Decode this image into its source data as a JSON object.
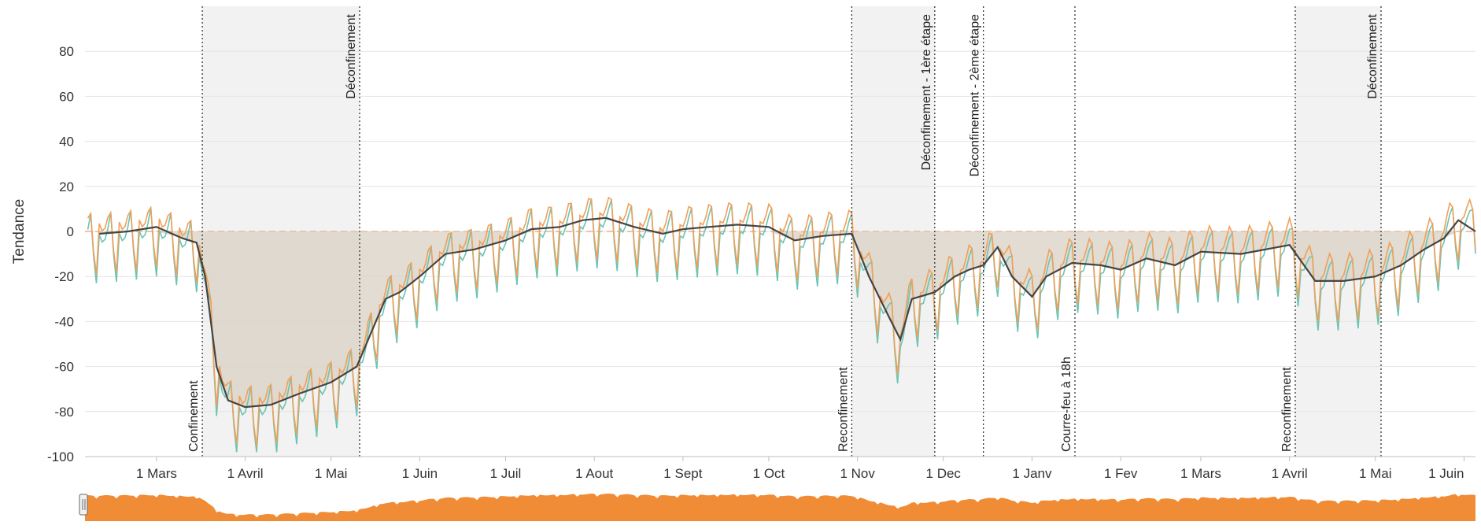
{
  "chart_data": {
    "type": "line",
    "title": "",
    "ylabel": "Tendance",
    "xlabel": "",
    "ylim": [
      -100,
      100
    ],
    "yticks": [
      -100,
      -80,
      -60,
      -40,
      -20,
      0,
      20,
      40,
      60,
      80
    ],
    "xlim": [
      "2020-02-05",
      "2021-06-05"
    ],
    "xticks": [
      {
        "date": "2020-03-01",
        "label": "1 Mars"
      },
      {
        "date": "2020-04-01",
        "label": "1 Avril"
      },
      {
        "date": "2020-05-01",
        "label": "1 Mai"
      },
      {
        "date": "2020-06-01",
        "label": "1 Juin"
      },
      {
        "date": "2020-07-01",
        "label": "1 Juil"
      },
      {
        "date": "2020-08-01",
        "label": "1 Aout"
      },
      {
        "date": "2020-09-01",
        "label": "1 Sept"
      },
      {
        "date": "2020-10-01",
        "label": "1 Oct"
      },
      {
        "date": "2020-11-01",
        "label": "1 Nov"
      },
      {
        "date": "2020-12-01",
        "label": "1 Dec"
      },
      {
        "date": "2021-01-01",
        "label": "1 Janv"
      },
      {
        "date": "2021-02-01",
        "label": "1 Fev"
      },
      {
        "date": "2021-03-01",
        "label": "1 Mars"
      },
      {
        "date": "2021-04-01",
        "label": "1 Avril"
      },
      {
        "date": "2021-05-01",
        "label": "1 Mai"
      },
      {
        "date": "2021-06-01",
        "label": "1 Juin"
      }
    ],
    "grid": true,
    "legend": "none",
    "colors": {
      "series_a": "#f0a058",
      "series_b": "#6cc4b4",
      "trend": "#444444",
      "lockdown_band": "#f2f2f2",
      "trend_fill": "#d8d0c4",
      "zero_line": "#e8b08a",
      "navigator": "#f08c36"
    },
    "lockdown_periods": [
      {
        "start": "2020-03-17",
        "end": "2020-05-11"
      },
      {
        "start": "2020-10-30",
        "end": "2020-11-28"
      },
      {
        "start": "2021-04-03",
        "end": "2021-05-03"
      }
    ],
    "events": [
      {
        "date": "2020-03-17",
        "label": "Confinement",
        "position": "bottom"
      },
      {
        "date": "2020-05-11",
        "label": "Déconfinement",
        "position": "top"
      },
      {
        "date": "2020-10-30",
        "label": "Reconfinement",
        "position": "bottom"
      },
      {
        "date": "2020-11-28",
        "label": "Déconfinement - 1ère étape",
        "position": "top"
      },
      {
        "date": "2020-12-15",
        "label": "Déconfinement - 2ème étape",
        "position": "top"
      },
      {
        "date": "2021-01-16",
        "label": "Courre-feu à 18h",
        "position": "bottom"
      },
      {
        "date": "2021-04-03",
        "label": "Reconfinement",
        "position": "bottom"
      },
      {
        "date": "2021-05-03",
        "label": "Déconfinement",
        "position": "top"
      }
    ],
    "trend_points": [
      {
        "x": "2020-02-10",
        "y": -1
      },
      {
        "x": "2020-02-20",
        "y": 0
      },
      {
        "x": "2020-03-01",
        "y": 2
      },
      {
        "x": "2020-03-10",
        "y": -3
      },
      {
        "x": "2020-03-15",
        "y": -5
      },
      {
        "x": "2020-03-18",
        "y": -20
      },
      {
        "x": "2020-03-22",
        "y": -60
      },
      {
        "x": "2020-03-26",
        "y": -75
      },
      {
        "x": "2020-04-01",
        "y": -78
      },
      {
        "x": "2020-04-10",
        "y": -77
      },
      {
        "x": "2020-04-20",
        "y": -72
      },
      {
        "x": "2020-05-01",
        "y": -67
      },
      {
        "x": "2020-05-10",
        "y": -60
      },
      {
        "x": "2020-05-15",
        "y": -45
      },
      {
        "x": "2020-05-20",
        "y": -30
      },
      {
        "x": "2020-05-25",
        "y": -27
      },
      {
        "x": "2020-06-01",
        "y": -20
      },
      {
        "x": "2020-06-10",
        "y": -10
      },
      {
        "x": "2020-06-20",
        "y": -8
      },
      {
        "x": "2020-07-01",
        "y": -4
      },
      {
        "x": "2020-07-10",
        "y": 1
      },
      {
        "x": "2020-07-20",
        "y": 2
      },
      {
        "x": "2020-07-28",
        "y": 5
      },
      {
        "x": "2020-08-05",
        "y": 6
      },
      {
        "x": "2020-08-15",
        "y": 2
      },
      {
        "x": "2020-08-25",
        "y": -1
      },
      {
        "x": "2020-09-01",
        "y": 1
      },
      {
        "x": "2020-09-10",
        "y": 2
      },
      {
        "x": "2020-09-20",
        "y": 3
      },
      {
        "x": "2020-10-01",
        "y": 2
      },
      {
        "x": "2020-10-10",
        "y": -4
      },
      {
        "x": "2020-10-20",
        "y": -2
      },
      {
        "x": "2020-10-30",
        "y": -1
      },
      {
        "x": "2020-11-05",
        "y": -20
      },
      {
        "x": "2020-11-12",
        "y": -38
      },
      {
        "x": "2020-11-16",
        "y": -48
      },
      {
        "x": "2020-11-20",
        "y": -30
      },
      {
        "x": "2020-11-28",
        "y": -27
      },
      {
        "x": "2020-12-05",
        "y": -20
      },
      {
        "x": "2020-12-10",
        "y": -17
      },
      {
        "x": "2020-12-15",
        "y": -15
      },
      {
        "x": "2020-12-20",
        "y": -7
      },
      {
        "x": "2020-12-25",
        "y": -20
      },
      {
        "x": "2021-01-01",
        "y": -29
      },
      {
        "x": "2021-01-06",
        "y": -20
      },
      {
        "x": "2021-01-15",
        "y": -14
      },
      {
        "x": "2021-01-25",
        "y": -15
      },
      {
        "x": "2021-02-01",
        "y": -17
      },
      {
        "x": "2021-02-10",
        "y": -12
      },
      {
        "x": "2021-02-20",
        "y": -15
      },
      {
        "x": "2021-03-01",
        "y": -9
      },
      {
        "x": "2021-03-15",
        "y": -10
      },
      {
        "x": "2021-04-01",
        "y": -6
      },
      {
        "x": "2021-04-10",
        "y": -22
      },
      {
        "x": "2021-04-20",
        "y": -22
      },
      {
        "x": "2021-05-01",
        "y": -20
      },
      {
        "x": "2021-05-10",
        "y": -15
      },
      {
        "x": "2021-05-18",
        "y": -8
      },
      {
        "x": "2021-05-25",
        "y": -3
      },
      {
        "x": "2021-05-30",
        "y": 5
      },
      {
        "x": "2021-06-05",
        "y": 0
      }
    ]
  }
}
